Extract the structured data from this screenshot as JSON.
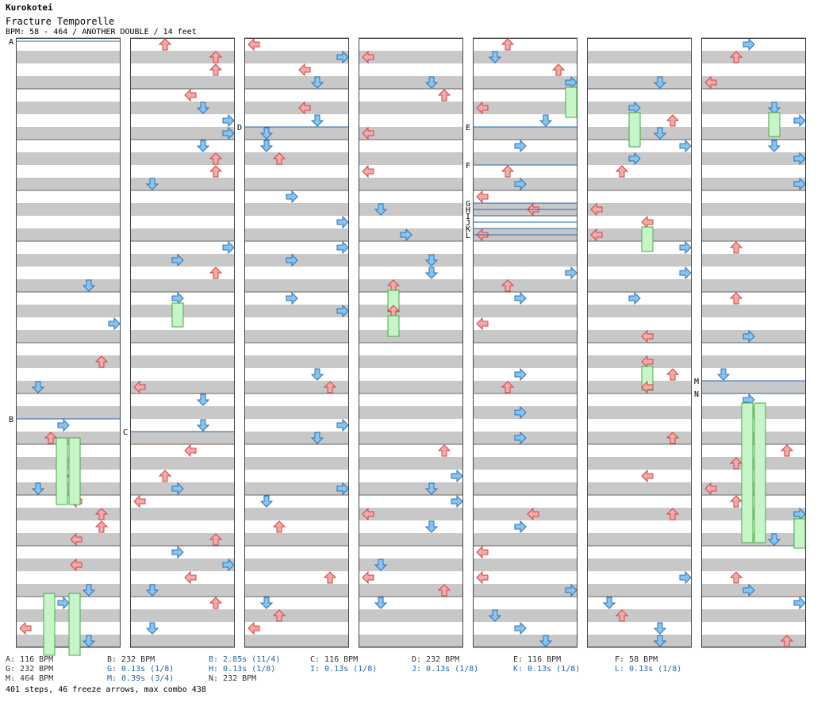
{
  "header": {
    "title": "Kurokotei",
    "subtitle": "Fracture Temporelle",
    "info": "BPM: 58 - 464 / ANOTHER DOUBLE / 14 feet"
  },
  "colors": {
    "row_gray": "#c8c8c8",
    "row_white": "#ffffff",
    "arrow_red": "#f5a9a9",
    "arrow_red_stroke": "#cc4444",
    "arrow_blue": "#88c4f0",
    "arrow_blue_stroke": "#2a70b8",
    "arrow_pink": "#f2a8f2",
    "arrow_green": "#66dd44",
    "freeze_fill": "#c8f5c8",
    "freeze_stroke": "#44aa44",
    "marker_line": "#2266aa"
  },
  "markers": [
    {
      "label": "A"
    },
    {
      "label": "B"
    },
    {
      "label": "C"
    },
    {
      "label": "D"
    },
    {
      "label": "E"
    },
    {
      "label": "F"
    },
    {
      "label": "G"
    },
    {
      "label": "H"
    },
    {
      "label": "I"
    },
    {
      "label": "J"
    },
    {
      "label": "K"
    },
    {
      "label": "L"
    },
    {
      "label": "M"
    },
    {
      "label": "N"
    }
  ],
  "legend": {
    "row1": [
      "A: 116 BPM",
      "B: 232 BPM",
      "B: 2.85s (11/4)",
      "C: 116 BPM",
      "D: 232 BPM",
      "E: 116 BPM",
      "F: 58 BPM"
    ],
    "row2": [
      "G: 232 BPM",
      "G: 0.13s (1/8)",
      "H: 0.13s (1/8)",
      "I: 0.13s (1/8)",
      "J: 0.13s (1/8)",
      "K: 0.13s (1/8)",
      "L: 0.13s (1/8)"
    ],
    "row3": [
      "M: 464 BPM",
      "M: 0.39s (3/4)",
      "N: 232 BPM"
    ]
  },
  "stats": "401 steps, 46 freeze arrows, max combo 438"
}
